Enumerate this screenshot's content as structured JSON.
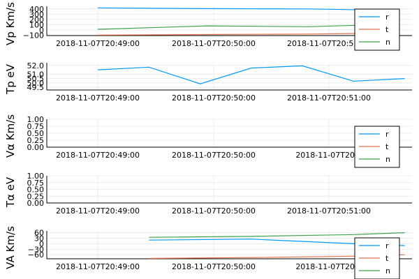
{
  "colors": {
    "r": "#009AFA",
    "t": "#E26F46",
    "n": "#3DA44D",
    "grid": "#ececec",
    "axis": "#000000"
  },
  "chart_data": [
    {
      "type": "line",
      "ylabel": "Vp Km/s",
      "x_ticks": [
        "2018-11-07T20:49:00",
        "2018-11-07T20:50:00",
        "2018-11-07T20:51:00"
      ],
      "y_ticks": [
        "400",
        "300",
        "200",
        "100",
        "0",
        "−100"
      ],
      "y_tick_values": [
        400,
        300,
        200,
        100,
        0,
        -100
      ],
      "ylim": [
        -110,
        450
      ],
      "xlim": [
        -28,
        172
      ],
      "grid": true,
      "legend": {
        "position": "top-right",
        "entries": [
          "r",
          "t",
          "n"
        ]
      },
      "series": [
        {
          "name": "r",
          "x": [
            0,
            60,
            115,
            165
          ],
          "y": [
            420,
            405,
            400,
            370
          ]
        },
        {
          "name": "t",
          "x": [
            0,
            60,
            115,
            165
          ],
          "y": [
            -100,
            -90,
            -80,
            -60
          ]
        },
        {
          "name": "n",
          "x": [
            0,
            60,
            115,
            165
          ],
          "y": [
            10,
            75,
            60,
            110
          ]
        }
      ]
    },
    {
      "type": "line",
      "ylabel": "Tp eV",
      "x_ticks": [
        "2018-11-07T20:49:00",
        "2018-11-07T20:50:00",
        "2018-11-07T20:51:00"
      ],
      "y_ticks": [
        "52.0",
        "51.0",
        "50.5",
        "50.0",
        "49.5"
      ],
      "y_tick_values": [
        52.0,
        51.0,
        50.5,
        50.0,
        49.5
      ],
      "ylim": [
        49.2,
        52.3
      ],
      "xlim": [
        -28,
        172
      ],
      "grid": true,
      "series": [
        {
          "name": "r",
          "x": [
            0,
            28,
            56,
            84,
            112,
            140,
            168
          ],
          "y": [
            51.5,
            51.8,
            49.9,
            51.7,
            51.95,
            50.2,
            50.5
          ]
        }
      ]
    },
    {
      "type": "line",
      "ylabel": "Vα Km/s",
      "x_ticks": [
        "2018-11-07T20:49:00",
        "2018-11-07T20:50:00",
        "2018-11-07T20:5"
      ],
      "y_ticks": [
        "1.00",
        "0.75",
        "0.50",
        "0.25",
        "0.00"
      ],
      "y_tick_values": [
        1.0,
        0.75,
        0.5,
        0.25,
        0.0
      ],
      "ylim": [
        0,
        1
      ],
      "xlim": [
        -28,
        172
      ],
      "grid": true,
      "legend": {
        "position": "bottom-right",
        "entries": [
          "r",
          "t",
          "n"
        ]
      },
      "series": []
    },
    {
      "type": "line",
      "ylabel": "Tα eV",
      "x_ticks": [
        "2018-11-07T20:49:00",
        "2018-11-07T20:50:00",
        "2018-11-07T20:51:00"
      ],
      "y_ticks": [
        "1.00",
        "0.75",
        "0.50",
        "0.25",
        "0.00"
      ],
      "y_tick_values": [
        1.0,
        0.75,
        0.5,
        0.25,
        0.0
      ],
      "ylim": [
        0,
        1
      ],
      "xlim": [
        -28,
        172
      ],
      "grid": true,
      "series": []
    },
    {
      "type": "line",
      "ylabel": "VA Km/s",
      "x_ticks": [
        "2018-11-07T20:49:00",
        "2018-11-07T20:50:00",
        "2018-11-07T20:5"
      ],
      "y_ticks": [
        "60",
        "30",
        "0",
        "−30",
        "−60"
      ],
      "y_tick_values": [
        60,
        30,
        0,
        -30,
        -60
      ],
      "ylim": [
        -82,
        70
      ],
      "xlim": [
        -28,
        172
      ],
      "grid": true,
      "legend": {
        "position": "bottom-right",
        "entries": [
          "r",
          "t",
          "n"
        ]
      },
      "series": [
        {
          "name": "r",
          "x": [
            28,
            84,
            140,
            168
          ],
          "y": [
            20,
            25,
            0,
            -10
          ]
        },
        {
          "name": "t",
          "x": [
            28,
            84,
            140,
            168
          ],
          "y": [
            -80,
            -75,
            -68,
            -60
          ]
        },
        {
          "name": "n",
          "x": [
            28,
            84,
            140,
            168
          ],
          "y": [
            35,
            40,
            50,
            60
          ]
        }
      ]
    }
  ]
}
